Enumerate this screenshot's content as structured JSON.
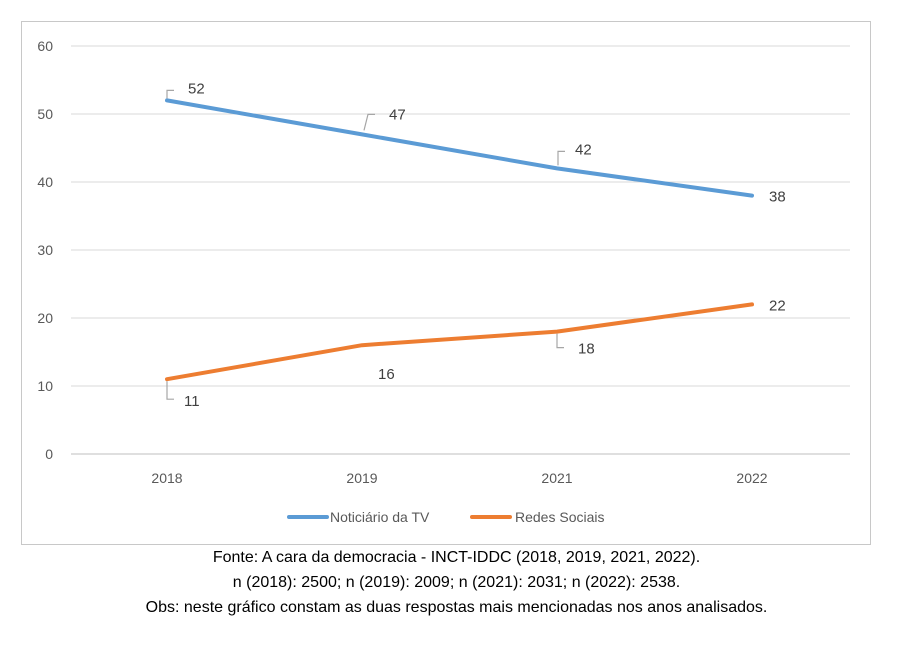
{
  "chart_data": {
    "type": "line",
    "categories": [
      "2018",
      "2019",
      "2021",
      "2022"
    ],
    "series": [
      {
        "name": "Noticiário da TV",
        "values": [
          52,
          47,
          42,
          38
        ],
        "color": "#5b9bd5"
      },
      {
        "name": "Redes Sociais",
        "values": [
          11,
          16,
          18,
          22
        ],
        "color": "#ed7d31"
      }
    ],
    "ylim": [
      0,
      60
    ],
    "yticks": [
      0,
      10,
      20,
      30,
      40,
      50,
      60
    ],
    "grid": true,
    "legend": "bottom-center",
    "xlabel": "",
    "ylabel": ""
  },
  "caption": {
    "source": "Fonte: A cara da democracia - INCT-IDDC (2018, 2019, 2021, 2022).",
    "sample": "n (2018): 2500; n (2019): 2009; n (2021): 2031; n (2022): 2538.",
    "note": "Obs: neste gráfico constam as duas respostas mais mencionadas nos anos analisados."
  }
}
